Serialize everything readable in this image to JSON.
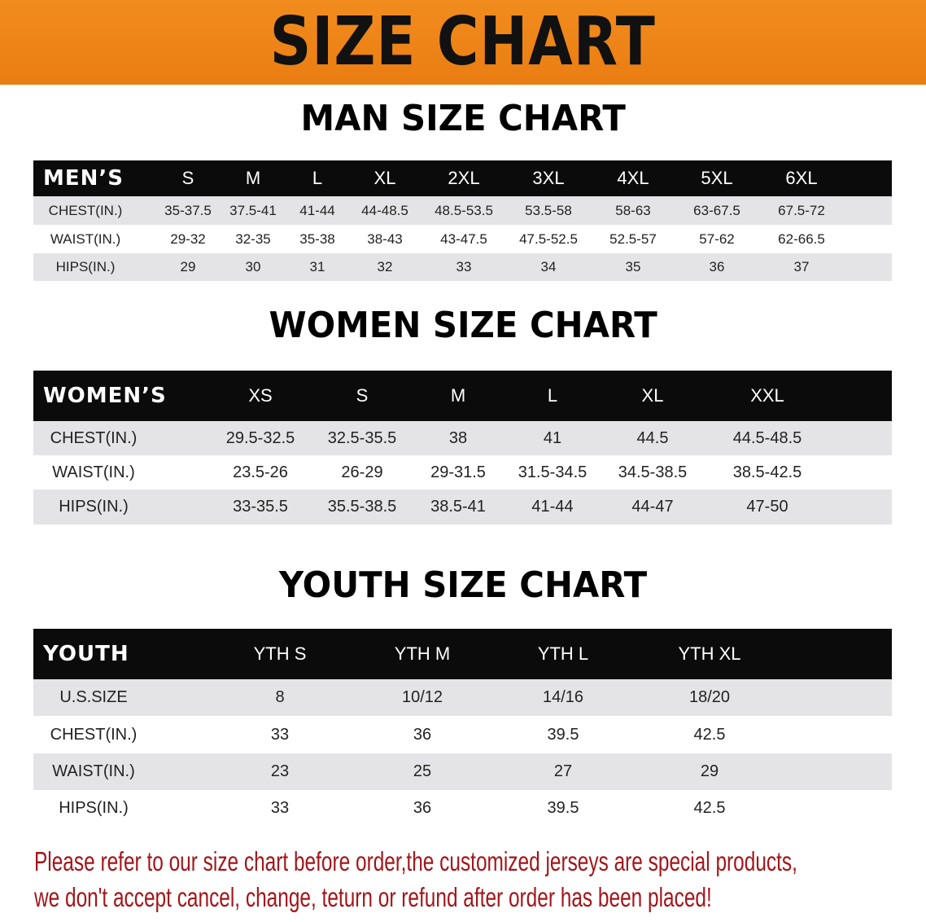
{
  "banner": {
    "title": "SIZE CHART",
    "color": "#ef8419"
  },
  "men": {
    "title": "MAN SIZE CHART",
    "header": [
      "MEN’S",
      "S",
      "M",
      "L",
      "XL",
      "2XL",
      "3XL",
      "4XL",
      "5XL",
      "6XL"
    ],
    "rows": [
      [
        "CHEST(IN.)",
        "35-37.5",
        "37.5-41",
        "41-44",
        "44-48.5",
        "48.5-53.5",
        "53.5-58",
        "58-63",
        "63-67.5",
        "67.5-72"
      ],
      [
        "WAIST(IN.)",
        "29-32",
        "32-35",
        "35-38",
        "38-43",
        "43-47.5",
        "47.5-52.5",
        "52.5-57",
        "57-62",
        "62-66.5"
      ],
      [
        "HIPS(IN.)",
        "29",
        "30",
        "31",
        "32",
        "33",
        "34",
        "35",
        "36",
        "37"
      ]
    ]
  },
  "women": {
    "title": "WOMEN SIZE CHART",
    "header": [
      "WOMEN’S",
      "XS",
      "S",
      "M",
      "L",
      "XL",
      "XXL"
    ],
    "rows": [
      [
        "CHEST(IN.)",
        "29.5-32.5",
        "32.5-35.5",
        "38",
        "41",
        "44.5",
        "44.5-48.5"
      ],
      [
        "WAIST(IN.)",
        "23.5-26",
        "26-29",
        "29-31.5",
        "31.5-34.5",
        "34.5-38.5",
        "38.5-42.5"
      ],
      [
        "HIPS(IN.)",
        "33-35.5",
        "35.5-38.5",
        "38.5-41",
        "41-44",
        "44-47",
        "47-50"
      ]
    ]
  },
  "youth": {
    "title": "YOUTH SIZE CHART",
    "header": [
      "YOUTH",
      "YTH S",
      "YTH M",
      "YTH L",
      "YTH XL"
    ],
    "rows": [
      [
        "U.S.SIZE",
        "8",
        "10/12",
        "14/16",
        "18/20"
      ],
      [
        "CHEST(IN.)",
        "33",
        "36",
        "39.5",
        "42.5"
      ],
      [
        "WAIST(IN.)",
        "23",
        "25",
        "27",
        "29"
      ],
      [
        "HIPS(IN.)",
        "33",
        "36",
        "39.5",
        "42.5"
      ]
    ]
  },
  "note": {
    "line1": "Please refer to our size chart before order,the customized jerseys are special products,",
    "line2": "we don't accept cancel, change, teturn or refund after order has been placed!",
    "color": "#a3161a"
  }
}
